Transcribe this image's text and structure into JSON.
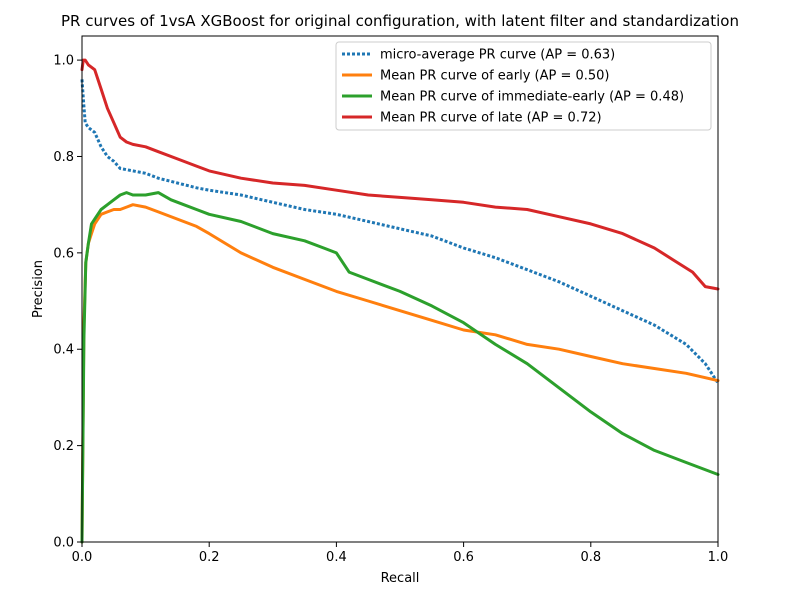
{
  "chart_data": {
    "type": "line",
    "title": "PR curves of 1vsA XGBoost for original configuration, with latent filter and standardization",
    "xlabel": "Recall",
    "ylabel": "Precision",
    "xlim": [
      0.0,
      1.0
    ],
    "ylim": [
      0.0,
      1.05
    ],
    "xticks": [
      "0.0",
      "0.2",
      "0.4",
      "0.6",
      "0.8",
      "1.0"
    ],
    "yticks": [
      "0.0",
      "0.2",
      "0.4",
      "0.6",
      "0.8",
      "1.0"
    ],
    "grid": false,
    "legend_position": "top-right",
    "series": [
      {
        "name": "micro-average PR curve (AP = 0.63)",
        "color": "#1f77b4",
        "style": "dotted",
        "x": [
          0.0,
          0.002,
          0.005,
          0.01,
          0.02,
          0.03,
          0.04,
          0.05,
          0.06,
          0.08,
          0.1,
          0.12,
          0.15,
          0.18,
          0.2,
          0.25,
          0.3,
          0.35,
          0.4,
          0.45,
          0.5,
          0.55,
          0.6,
          0.65,
          0.7,
          0.75,
          0.8,
          0.85,
          0.9,
          0.95,
          0.98,
          1.0
        ],
        "y": [
          0.96,
          0.92,
          0.87,
          0.86,
          0.85,
          0.82,
          0.8,
          0.79,
          0.775,
          0.77,
          0.765,
          0.755,
          0.745,
          0.735,
          0.73,
          0.72,
          0.705,
          0.69,
          0.68,
          0.665,
          0.65,
          0.635,
          0.61,
          0.59,
          0.565,
          0.54,
          0.51,
          0.48,
          0.45,
          0.41,
          0.37,
          0.33
        ]
      },
      {
        "name": "Mean PR curve of early (AP = 0.50)",
        "color": "#ff7f0e",
        "style": "solid",
        "x": [
          0.0,
          0.003,
          0.006,
          0.01,
          0.015,
          0.02,
          0.03,
          0.04,
          0.05,
          0.06,
          0.08,
          0.1,
          0.12,
          0.15,
          0.18,
          0.2,
          0.25,
          0.3,
          0.35,
          0.4,
          0.45,
          0.5,
          0.55,
          0.6,
          0.65,
          0.7,
          0.75,
          0.8,
          0.85,
          0.9,
          0.95,
          1.0
        ],
        "y": [
          0.0,
          0.45,
          0.58,
          0.62,
          0.64,
          0.66,
          0.68,
          0.685,
          0.69,
          0.69,
          0.7,
          0.695,
          0.685,
          0.67,
          0.655,
          0.64,
          0.6,
          0.57,
          0.545,
          0.52,
          0.5,
          0.48,
          0.46,
          0.44,
          0.43,
          0.41,
          0.4,
          0.385,
          0.37,
          0.36,
          0.35,
          0.335
        ]
      },
      {
        "name": "Mean PR curve of immediate-early (AP = 0.48)",
        "color": "#2ca02c",
        "style": "solid",
        "x": [
          0.0,
          0.003,
          0.006,
          0.01,
          0.015,
          0.02,
          0.03,
          0.04,
          0.05,
          0.06,
          0.07,
          0.08,
          0.1,
          0.12,
          0.14,
          0.16,
          0.18,
          0.2,
          0.25,
          0.3,
          0.35,
          0.38,
          0.4,
          0.42,
          0.45,
          0.5,
          0.55,
          0.6,
          0.65,
          0.7,
          0.75,
          0.8,
          0.85,
          0.9,
          0.95,
          1.0
        ],
        "y": [
          0.0,
          0.42,
          0.58,
          0.62,
          0.66,
          0.67,
          0.69,
          0.7,
          0.71,
          0.72,
          0.725,
          0.72,
          0.72,
          0.725,
          0.71,
          0.7,
          0.69,
          0.68,
          0.665,
          0.64,
          0.625,
          0.61,
          0.6,
          0.56,
          0.545,
          0.52,
          0.49,
          0.455,
          0.41,
          0.37,
          0.32,
          0.27,
          0.225,
          0.19,
          0.165,
          0.14
        ]
      },
      {
        "name": "Mean PR curve of late (AP = 0.72)",
        "color": "#d62728",
        "style": "solid",
        "x": [
          0.0,
          0.002,
          0.005,
          0.01,
          0.02,
          0.03,
          0.04,
          0.05,
          0.06,
          0.07,
          0.08,
          0.1,
          0.12,
          0.15,
          0.18,
          0.2,
          0.25,
          0.3,
          0.35,
          0.4,
          0.45,
          0.5,
          0.55,
          0.6,
          0.65,
          0.7,
          0.75,
          0.8,
          0.85,
          0.9,
          0.93,
          0.96,
          0.98,
          1.0
        ],
        "y": [
          0.98,
          1.0,
          1.0,
          0.99,
          0.98,
          0.94,
          0.9,
          0.87,
          0.84,
          0.83,
          0.825,
          0.82,
          0.81,
          0.795,
          0.78,
          0.77,
          0.755,
          0.745,
          0.74,
          0.73,
          0.72,
          0.715,
          0.71,
          0.705,
          0.695,
          0.69,
          0.675,
          0.66,
          0.64,
          0.61,
          0.585,
          0.56,
          0.53,
          0.525
        ]
      }
    ]
  }
}
